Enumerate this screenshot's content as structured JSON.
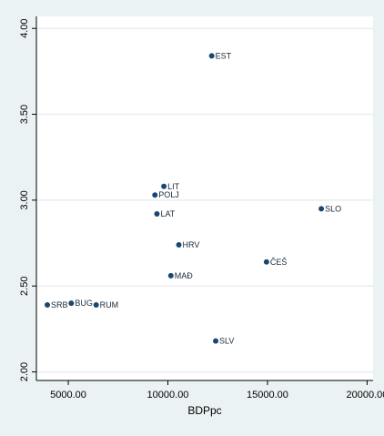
{
  "chart_data": {
    "type": "scatter",
    "xlabel": "BDPpc",
    "ylabel": "",
    "xlim": [
      3400,
      20300
    ],
    "ylim": [
      1.95,
      4.07
    ],
    "xticks": [
      5000,
      10000,
      15000,
      20000
    ],
    "xtick_labels": [
      "5000.00",
      "10000.00",
      "15000.00",
      "20000.00"
    ],
    "yticks": [
      2.0,
      2.5,
      3.0,
      3.5,
      4.0
    ],
    "ytick_labels": [
      "2.00",
      "2.50",
      "3.00",
      "3.50",
      "4.00"
    ],
    "grid": true,
    "marker_color": "#1a476f",
    "points": [
      {
        "label": "EST",
        "x": 12200,
        "y": 3.84
      },
      {
        "label": "LIT",
        "x": 9800,
        "y": 3.08
      },
      {
        "label": "POLJ",
        "x": 9350,
        "y": 3.03
      },
      {
        "label": "LAT",
        "x": 9450,
        "y": 2.92
      },
      {
        "label": "SLO",
        "x": 17700,
        "y": 2.95
      },
      {
        "label": "HRV",
        "x": 10550,
        "y": 2.74
      },
      {
        "label": "ČEŠ",
        "x": 14950,
        "y": 2.64
      },
      {
        "label": "MAĐ",
        "x": 10150,
        "y": 2.56
      },
      {
        "label": "SRB",
        "x": 3950,
        "y": 2.39
      },
      {
        "label": "BUG",
        "x": 5150,
        "y": 2.4
      },
      {
        "label": "RUM",
        "x": 6400,
        "y": 2.39
      },
      {
        "label": "SLV",
        "x": 12400,
        "y": 2.18
      }
    ]
  }
}
